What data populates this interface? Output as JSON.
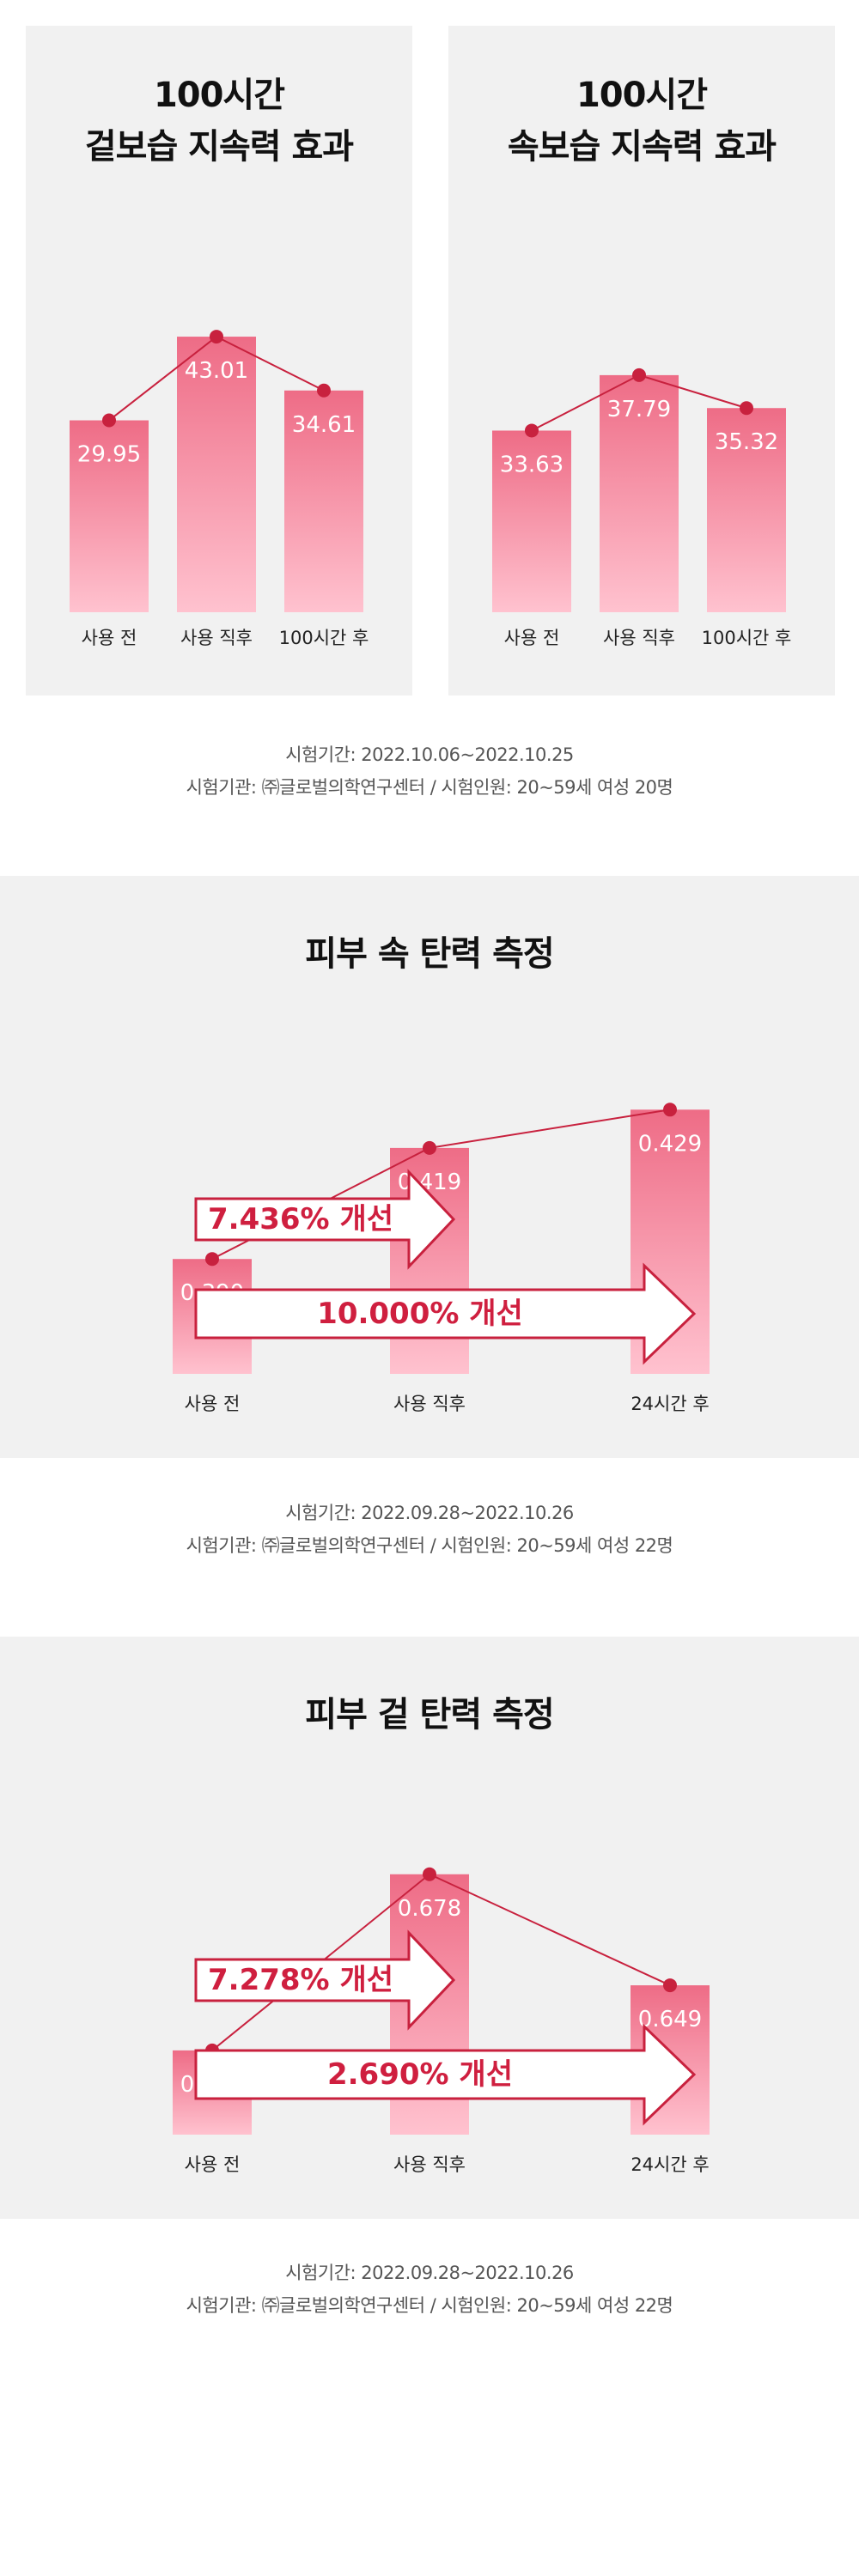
{
  "colors": {
    "bar_top": "#ee6c86",
    "bar_bottom": "#ffc2cf",
    "line": "#c8213e",
    "panel_bg": "#f1f1f1",
    "arrow_text": "#cf1f3f"
  },
  "sections": {
    "top_left": {
      "title_line1": "100시간",
      "title_line2": "겉보습 지속력 효과"
    },
    "top_right": {
      "title_line1": "100시간",
      "title_line2": "속보습 지속력 효과"
    },
    "note1": {
      "line1": "시험기간: 2022.10.06~2022.10.25",
      "line2": "시험기관: ㈜글로벌의학연구센터 / 시험인원: 20~59세 여성 20명"
    },
    "mid": {
      "title": "피부 속 탄력 측정"
    },
    "note2": {
      "line1": "시험기간: 2022.09.28~2022.10.26",
      "line2": "시험기관: ㈜글로벌의학연구센터 / 시험인원: 20~59세 여성 22명"
    },
    "bottom": {
      "title": "피부 겉 탄력 측정"
    },
    "note3": {
      "line1": "시험기간: 2022.09.28~2022.10.26",
      "line2": "시험기관: ㈜글로벌의학연구센터 / 시험인원: 20~59세 여성 22명"
    }
  },
  "chart_data": [
    {
      "type": "bar",
      "title": "100시간 겉보습 지속력 효과",
      "categories": [
        "사용 전",
        "사용 직후",
        "100시간 후"
      ],
      "values": [
        29.95,
        43.01,
        34.61
      ],
      "labels": [
        "29.95",
        "43.01",
        "34.61"
      ],
      "line_overlay": true
    },
    {
      "type": "bar",
      "title": "100시간 속보습 지속력 효과",
      "categories": [
        "사용 전",
        "사용 직후",
        "100시간 후"
      ],
      "values": [
        33.63,
        37.79,
        35.32
      ],
      "labels": [
        "33.63",
        "37.79",
        "35.32"
      ],
      "line_overlay": true
    },
    {
      "type": "bar",
      "title": "피부 속 탄력 측정",
      "categories": [
        "사용 전",
        "사용 직후",
        "24시간 후"
      ],
      "values": [
        0.39,
        0.419,
        0.429
      ],
      "labels": [
        "0.390",
        "0.419",
        "0.429"
      ],
      "line_overlay": true,
      "annotations": [
        "7.436% 개선",
        "10.000% 개선"
      ]
    },
    {
      "type": "bar",
      "title": "피부 겉 탄력 측정",
      "categories": [
        "사용 전",
        "사용 직후",
        "24시간 후"
      ],
      "values": [
        0.632,
        0.678,
        0.649
      ],
      "labels": [
        "0.632",
        "0.678",
        "0.649"
      ],
      "line_overlay": true,
      "annotations": [
        "7.278% 개선",
        "2.690% 개선"
      ]
    }
  ]
}
